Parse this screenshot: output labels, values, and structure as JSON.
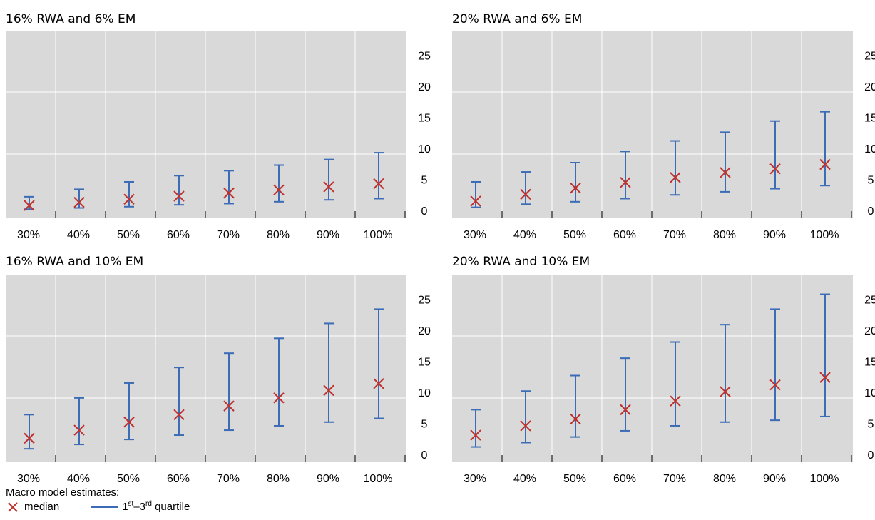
{
  "colors": {
    "plot_bg": "#d9d9d9",
    "grid": "#ffffff",
    "median": "#c0302b",
    "quartile": "#3b6cb5",
    "axis": "#000000"
  },
  "legend": {
    "title": "Macro model estimates:",
    "median_label": "median",
    "quartile_prefix": "1",
    "quartile_sup1": "st",
    "quartile_mid": "–3",
    "quartile_sup2": "rd",
    "quartile_suffix": " quartile",
    "median_icon": "x-cross",
    "quartile_icon": "line"
  },
  "chart_data": [
    {
      "type": "errorbar",
      "title": "16% RWA and 6% EM",
      "categories": [
        "30%",
        "40%",
        "50%",
        "60%",
        "70%",
        "80%",
        "90%",
        "100%"
      ],
      "ylim": [
        0,
        25
      ],
      "yticks": [
        "0",
        "5",
        "10",
        "15",
        "20",
        "25"
      ],
      "y_axis_side": "right",
      "grid": true,
      "series": [
        {
          "name": "median",
          "values": [
            0.8,
            1.3,
            1.8,
            2.3,
            2.8,
            3.3,
            3.8,
            4.3
          ]
        },
        {
          "name": "1st–3rd quartile",
          "low": [
            0.2,
            0.4,
            0.6,
            0.9,
            1.1,
            1.4,
            1.7,
            1.9
          ],
          "high": [
            2.2,
            3.4,
            4.6,
            5.6,
            6.4,
            7.3,
            8.2,
            9.3
          ]
        }
      ]
    },
    {
      "type": "errorbar",
      "title": "20% RWA and 6% EM",
      "categories": [
        "30%",
        "40%",
        "50%",
        "60%",
        "70%",
        "80%",
        "90%",
        "100%"
      ],
      "ylim": [
        0,
        25
      ],
      "yticks": [
        "0",
        "5",
        "10",
        "15",
        "20",
        "25"
      ],
      "y_axis_side": "right",
      "grid": true,
      "series": [
        {
          "name": "median",
          "values": [
            1.5,
            2.6,
            3.6,
            4.5,
            5.3,
            6.1,
            6.7,
            7.4
          ]
        },
        {
          "name": "1st–3rd quartile",
          "low": [
            0.5,
            1.0,
            1.4,
            1.9,
            2.5,
            3.0,
            3.5,
            4.0
          ],
          "high": [
            4.6,
            6.2,
            7.7,
            9.5,
            11.2,
            12.6,
            14.4,
            15.9
          ]
        }
      ]
    },
    {
      "type": "errorbar",
      "title": "16% RWA and 10% EM",
      "categories": [
        "30%",
        "40%",
        "50%",
        "60%",
        "70%",
        "80%",
        "90%",
        "100%"
      ],
      "ylim": [
        0,
        25
      ],
      "yticks": [
        "0",
        "5",
        "10",
        "15",
        "20",
        "25"
      ],
      "y_axis_side": "right",
      "grid": true,
      "series": [
        {
          "name": "median",
          "values": [
            2.6,
            3.9,
            5.2,
            6.4,
            7.8,
            9.1,
            10.3,
            11.4
          ]
        },
        {
          "name": "1st–3rd quartile",
          "low": [
            0.9,
            1.6,
            2.4,
            3.1,
            3.9,
            4.6,
            5.2,
            5.8
          ],
          "high": [
            6.4,
            9.1,
            11.5,
            14.0,
            16.3,
            18.7,
            21.1,
            23.4
          ]
        }
      ]
    },
    {
      "type": "errorbar",
      "title": "20% RWA and 10% EM",
      "categories": [
        "30%",
        "40%",
        "50%",
        "60%",
        "70%",
        "80%",
        "90%",
        "100%"
      ],
      "ylim": [
        0,
        25
      ],
      "yticks": [
        "0",
        "5",
        "10",
        "15",
        "20",
        "25"
      ],
      "y_axis_side": "right",
      "grid": true,
      "series": [
        {
          "name": "median",
          "values": [
            3.1,
            4.6,
            5.7,
            7.2,
            8.6,
            10.1,
            11.2,
            12.4
          ]
        },
        {
          "name": "1st–3rd quartile",
          "low": [
            1.2,
            1.9,
            2.8,
            3.8,
            4.6,
            5.2,
            5.5,
            6.1
          ],
          "high": [
            7.2,
            10.2,
            12.7,
            15.5,
            18.1,
            20.9,
            23.4,
            25.8
          ]
        }
      ]
    }
  ]
}
